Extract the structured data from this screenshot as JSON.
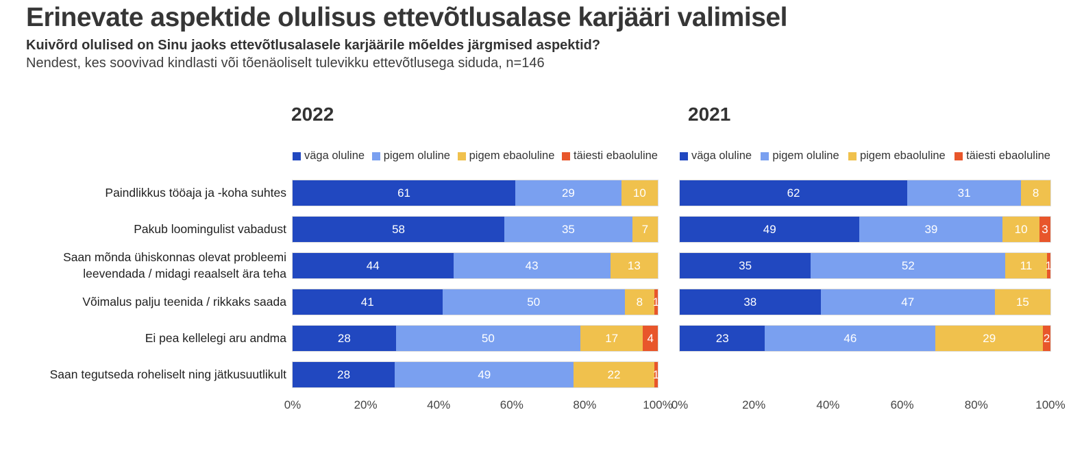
{
  "header": {
    "title": "Erinevate aspektide olulisus ettevõtlusalase karjääri valimisel",
    "question": "Kuivõrd olulised on Sinu jaoks ettevõtlusalasele karjäärile mõeldes järgmised aspektid?",
    "note": "Nendest, kes soovivad kindlasti või tõenäoliselt tulevikku ettevõtlusega siduda, n=146"
  },
  "chart_data": {
    "type": "bar",
    "variant": "stacked-horizontal-percent",
    "orientation": "horizontal",
    "grid": false,
    "legend_position": "top",
    "xlim": [
      0,
      100
    ],
    "x_ticks": [
      "0%",
      "20%",
      "40%",
      "60%",
      "80%",
      "100%"
    ],
    "legend": [
      "väga oluline",
      "pigem oluline",
      "pigem ebaoluline",
      "täiesti ebaoluline"
    ],
    "series_colors": [
      "#2148c0",
      "#7aa0f0",
      "#f0c14d",
      "#e8562b"
    ],
    "categories": [
      "Paindlikkus tööaja ja -koha suhtes",
      "Pakub loomingulist vabadust",
      "Saan mõnda ühiskonnas olevat probleemi leevendada / midagi reaalselt ära teha",
      "Võimalus palju teenida / rikkaks saada",
      "Ei pea kellelegi aru andma",
      "Saan tegutseda roheliselt ning jätkusuutlikult"
    ],
    "panels": [
      {
        "title": "2022",
        "series": [
          {
            "name": "väga oluline",
            "values": [
              61,
              58,
              44,
              41,
              28,
              28
            ]
          },
          {
            "name": "pigem oluline",
            "values": [
              29,
              35,
              43,
              50,
              50,
              49
            ]
          },
          {
            "name": "pigem ebaoluline",
            "values": [
              10,
              7,
              13,
              8,
              17,
              22
            ]
          },
          {
            "name": "täiesti ebaoluline",
            "values": [
              0,
              0,
              0,
              1,
              4,
              1
            ]
          }
        ]
      },
      {
        "title": "2021",
        "series": [
          {
            "name": "väga oluline",
            "values": [
              62,
              49,
              35,
              38,
              23,
              null
            ]
          },
          {
            "name": "pigem oluline",
            "values": [
              31,
              39,
              52,
              47,
              46,
              null
            ]
          },
          {
            "name": "pigem ebaoluline",
            "values": [
              8,
              10,
              11,
              15,
              29,
              null
            ]
          },
          {
            "name": "täiesti ebaoluline",
            "values": [
              0,
              3,
              1,
              0,
              2,
              null
            ]
          }
        ]
      }
    ]
  }
}
